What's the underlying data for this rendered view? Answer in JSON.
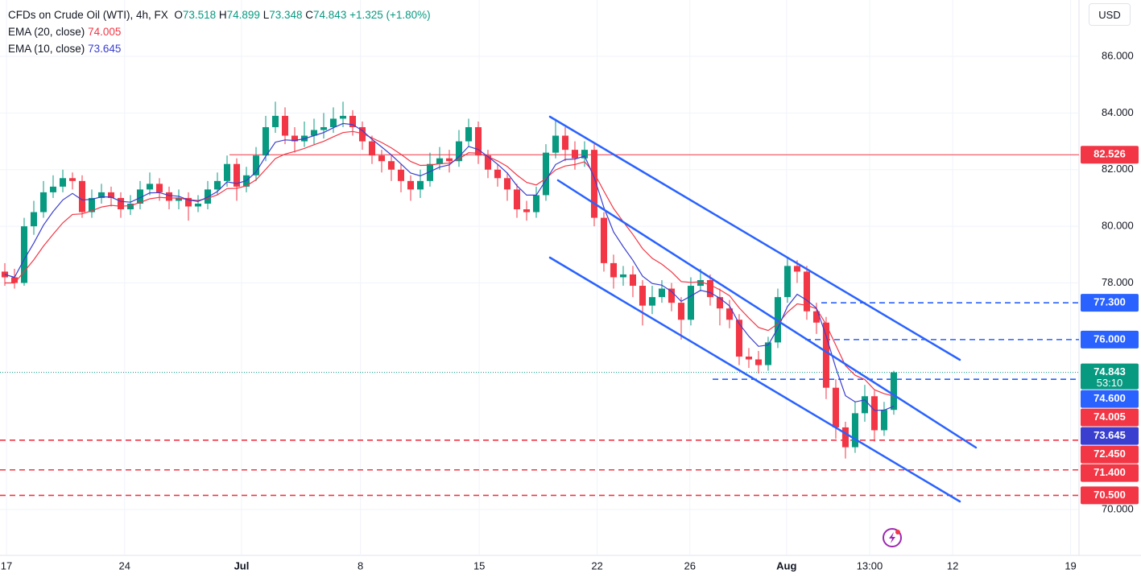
{
  "chart_data": {
    "type": "candlestick",
    "title": "CFDs on Crude Oil (WTI), 4h, FX",
    "ohlc_labels": {
      "open": "O",
      "high": "H",
      "low": "L",
      "close": "C"
    },
    "change": "+1.325 (+1.80%)",
    "currency": "USD",
    "countdown": "53:10",
    "up_color": "#089981",
    "down_color": "#f23645",
    "candles": {
      "open": [
        78.4,
        78.2,
        78.0,
        80.0,
        80.5,
        81.2,
        81.4,
        81.7,
        81.6,
        80.5,
        81.0,
        81.2,
        81.0,
        80.6,
        80.8,
        81.3,
        81.5,
        81.2,
        80.9,
        81.0,
        80.7,
        80.8,
        81.3,
        81.6,
        82.2,
        81.4,
        81.8,
        82.5,
        83.5,
        83.9,
        83.2,
        83.0,
        83.2,
        83.4,
        83.5,
        83.8,
        83.9,
        83.5,
        83.0,
        82.5,
        82.3,
        82.0,
        81.6,
        81.3,
        81.6,
        82.2,
        82.4,
        82.3,
        83.0,
        83.5,
        82.5,
        82.0,
        81.7,
        81.3,
        80.6,
        80.5,
        81.1,
        82.6,
        83.2,
        82.7,
        82.4,
        82.7,
        80.3,
        78.7,
        78.2,
        78.3,
        77.9,
        77.2,
        77.5,
        77.8,
        77.3,
        76.7,
        77.9,
        78.1,
        77.5,
        77.1,
        76.7,
        75.4,
        75.3,
        75.1,
        75.9,
        77.5,
        78.6,
        78.4,
        77.0,
        76.6,
        74.3,
        72.9,
        72.2,
        73.4,
        74.0,
        72.8,
        73.518
      ],
      "high": [
        78.7,
        78.5,
        80.3,
        80.9,
        81.6,
        81.8,
        82.0,
        81.9,
        81.8,
        81.3,
        81.5,
        81.4,
        81.2,
        81.1,
        81.6,
        81.9,
        81.7,
        81.4,
        81.3,
        81.2,
        81.1,
        81.6,
        81.9,
        82.5,
        82.4,
        82.1,
        82.8,
        83.9,
        84.4,
        84.2,
        83.5,
        83.7,
        83.8,
        84.0,
        84.2,
        84.4,
        84.1,
        83.7,
        83.2,
        82.7,
        82.5,
        82.2,
        81.8,
        82.0,
        82.6,
        82.8,
        82.7,
        83.4,
        83.8,
        83.7,
        82.7,
        82.2,
        81.9,
        81.5,
        80.9,
        81.4,
        82.9,
        83.8,
        83.5,
        83.0,
        83.0,
        82.9,
        80.5,
        79.0,
        78.6,
        78.6,
        78.1,
        77.9,
        78.1,
        78.0,
        77.5,
        78.2,
        78.5,
        78.3,
        77.8,
        77.4,
        76.9,
        75.7,
        75.6,
        76.1,
        77.8,
        78.9,
        78.8,
        78.6,
        77.3,
        76.8,
        74.6,
        73.1,
        73.8,
        74.4,
        74.2,
        73.8,
        74.899
      ],
      "low": [
        77.9,
        77.8,
        77.9,
        79.7,
        80.3,
        81.0,
        81.2,
        81.3,
        80.3,
        80.3,
        80.8,
        80.7,
        80.3,
        80.4,
        80.6,
        81.1,
        80.9,
        80.6,
        80.6,
        80.2,
        80.5,
        80.6,
        81.1,
        81.4,
        80.9,
        81.2,
        81.6,
        82.3,
        83.3,
        82.9,
        82.6,
        82.8,
        82.9,
        83.1,
        83.3,
        83.5,
        83.2,
        82.7,
        82.2,
        81.9,
        81.6,
        81.2,
        80.9,
        81.0,
        81.4,
        82.0,
        81.9,
        82.1,
        82.8,
        82.2,
        81.7,
        81.4,
        80.9,
        80.3,
        80.2,
        80.3,
        80.9,
        82.4,
        82.3,
        82.0,
        82.1,
        80.0,
        78.4,
        77.8,
        77.9,
        77.5,
        76.5,
        76.9,
        77.3,
        77.0,
        76.0,
        76.5,
        77.7,
        77.2,
        76.5,
        76.4,
        75.1,
        75.0,
        74.8,
        74.9,
        75.7,
        77.3,
        78.0,
        76.7,
        76.2,
        73.9,
        72.5,
        71.8,
        72.0,
        73.1,
        72.4,
        72.6,
        73.348
      ],
      "close": [
        78.2,
        78.0,
        80.0,
        80.5,
        81.2,
        81.4,
        81.7,
        81.6,
        80.5,
        81.0,
        81.2,
        81.0,
        80.6,
        80.8,
        81.3,
        81.5,
        81.2,
        80.9,
        81.0,
        80.7,
        80.8,
        81.3,
        81.6,
        82.2,
        81.4,
        81.8,
        82.5,
        83.5,
        83.9,
        83.2,
        83.0,
        83.2,
        83.4,
        83.5,
        83.8,
        83.9,
        83.5,
        83.0,
        82.5,
        82.3,
        82.0,
        81.6,
        81.3,
        81.6,
        82.2,
        82.4,
        82.3,
        83.0,
        83.5,
        82.5,
        82.0,
        81.7,
        81.3,
        80.6,
        80.5,
        81.1,
        82.6,
        83.2,
        82.7,
        82.4,
        82.7,
        80.3,
        78.7,
        78.2,
        78.3,
        77.9,
        77.2,
        77.5,
        77.8,
        77.3,
        76.7,
        77.9,
        78.1,
        77.5,
        77.1,
        76.7,
        75.4,
        75.3,
        75.1,
        75.9,
        77.5,
        78.6,
        78.4,
        77.0,
        76.6,
        74.3,
        72.9,
        72.2,
        73.4,
        74.0,
        72.8,
        73.518,
        74.843
      ]
    },
    "indicators": [
      {
        "name": "EMA (20, close)",
        "color": "#f23645",
        "values": [
          78.0,
          78.0,
          78.4,
          78.82,
          79.3,
          79.72,
          80.12,
          80.42,
          80.44,
          80.55,
          80.68,
          80.74,
          80.71,
          80.73,
          80.84,
          80.97,
          81.02,
          81.0,
          81.0,
          80.94,
          80.91,
          80.99,
          81.11,
          81.33,
          81.34,
          81.43,
          81.64,
          82.01,
          82.39,
          82.55,
          82.64,
          82.75,
          82.88,
          83.0,
          83.16,
          83.31,
          83.35,
          83.28,
          83.12,
          82.96,
          82.77,
          82.54,
          82.29,
          82.15,
          82.16,
          82.21,
          82.23,
          82.38,
          82.6,
          82.58,
          82.46,
          82.31,
          82.11,
          81.81,
          81.55,
          81.46,
          81.69,
          81.99,
          82.13,
          82.18,
          82.28,
          81.88,
          81.24,
          80.63,
          80.16,
          79.71,
          79.21,
          78.87,
          78.66,
          78.39,
          78.05,
          78.02,
          78.04,
          77.93,
          77.76,
          77.55,
          77.12,
          76.76,
          76.43,
          76.32,
          76.56,
          76.97,
          77.26,
          77.21,
          77.09,
          76.53,
          75.8,
          75.08,
          74.74,
          74.59,
          74.23,
          74.09,
          74.005
        ]
      },
      {
        "name": "EMA (10, close)",
        "color": "#3a3fd0",
        "values": [
          78.3,
          78.2,
          78.83,
          79.41,
          80.04,
          80.52,
          80.93,
          81.16,
          80.93,
          80.95,
          81.04,
          81.03,
          80.88,
          80.85,
          81.01,
          81.18,
          81.19,
          81.09,
          81.06,
          80.93,
          80.88,
          81.03,
          81.23,
          81.57,
          81.51,
          81.61,
          81.92,
          82.47,
          82.97,
          83.05,
          83.03,
          83.09,
          83.2,
          83.31,
          83.48,
          83.63,
          83.59,
          83.38,
          83.07,
          82.8,
          82.52,
          82.2,
          81.88,
          81.78,
          81.93,
          82.09,
          82.17,
          82.46,
          82.82,
          82.71,
          82.46,
          82.19,
          81.88,
          81.43,
          81.1,
          81.1,
          81.63,
          82.18,
          82.36,
          82.37,
          82.48,
          81.72,
          80.66,
          79.8,
          79.28,
          78.8,
          78.24,
          77.98,
          77.92,
          77.7,
          77.35,
          77.54,
          77.74,
          77.66,
          77.46,
          77.19,
          76.56,
          76.12,
          75.76,
          75.81,
          76.4,
          77.17,
          77.6,
          77.39,
          77.11,
          76.13,
          75.0,
          74.02,
          73.8,
          73.87,
          73.5,
          73.51,
          73.645
        ]
      }
    ],
    "levels": [
      {
        "value": 82.526,
        "color": "#f23645",
        "style": "solid"
      },
      {
        "value": 77.3,
        "label": "77.300",
        "color": "#2962ff",
        "style": "dashed"
      },
      {
        "value": 76.0,
        "label": "76.000",
        "color": "#2962ff",
        "style": "dashed"
      },
      {
        "value": 74.6,
        "label": "74.600",
        "color": "#2962ff",
        "style": "dashed"
      },
      {
        "value": 72.45,
        "label": "72.450",
        "color": "#f23645",
        "style": "dashed"
      },
      {
        "value": 71.4,
        "label": "71.400",
        "color": "#f23645",
        "style": "dashed"
      },
      {
        "value": 70.5,
        "label": "70.500",
        "color": "#f23645",
        "style": "dashed"
      }
    ],
    "xlim": [
      -0.5,
      111.17
    ],
    "xticks": [
      {
        "value": 0.17,
        "label": "17"
      },
      {
        "value": 12.4,
        "label": "24"
      },
      {
        "value": 24.5,
        "label": "Jul"
      },
      {
        "value": 36.8,
        "label": "8"
      },
      {
        "value": 49.1,
        "label": "15"
      },
      {
        "value": 61.3,
        "label": "22"
      },
      {
        "value": 70.9,
        "label": "26"
      },
      {
        "value": 80.9,
        "label": "Aug"
      },
      {
        "value": 89.5,
        "label": "13:00"
      },
      {
        "value": 98.1,
        "label": "12"
      },
      {
        "value": 110.3,
        "label": "19"
      }
    ],
    "ylim": [
      68.38,
      87.99
    ],
    "yticks": [
      {
        "value": 70,
        "label": "70.000"
      },
      {
        "value": 78,
        "label": "78.000"
      },
      {
        "value": 80,
        "label": "80.000"
      },
      {
        "value": 82,
        "label": "82.000"
      },
      {
        "value": 84,
        "label": "84.000"
      },
      {
        "value": 86,
        "label": "86.000"
      }
    ],
    "grid": true
  }
}
